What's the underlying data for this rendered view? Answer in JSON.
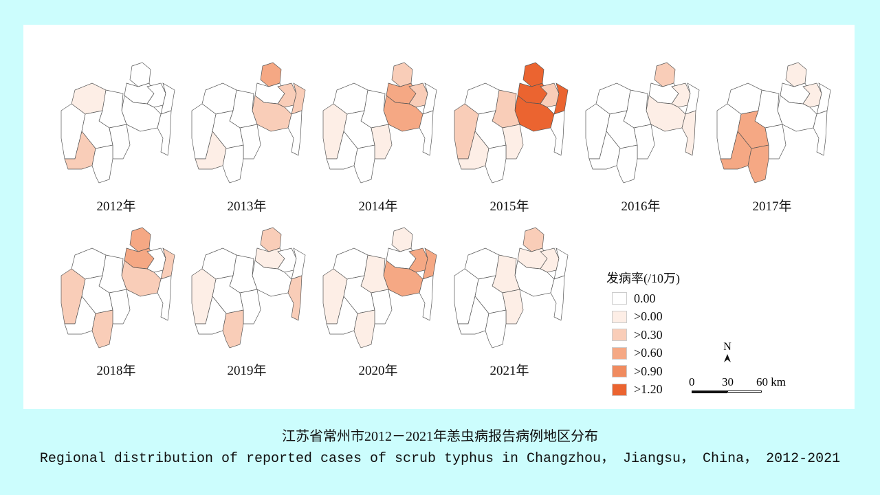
{
  "colors": [
    "#ffffff",
    "#fdeee6",
    "#f9cdb8",
    "#f5a884",
    "#f08b5f",
    "#eb6430"
  ],
  "legend": {
    "title": "发病率(/10万)",
    "items": [
      "0.00",
      ">0.00",
      ">0.30",
      ">0.60",
      ">0.90",
      ">1.20"
    ]
  },
  "north": "N",
  "scale": {
    "labels": [
      "0",
      "30",
      "60 km"
    ]
  },
  "years": [
    {
      "label": "2012年",
      "regions": {
        "G": 1,
        "L": 2
      }
    },
    {
      "label": "2013年",
      "regions": {
        "A": 3,
        "C": 2,
        "D": 2,
        "E": 2,
        "L": 1
      }
    },
    {
      "label": "2014年",
      "regions": {
        "A": 2,
        "B": 3,
        "C": 2,
        "E": 3,
        "I": 1,
        "K": 1
      }
    },
    {
      "label": "2015年",
      "regions": {
        "A": 5,
        "B": 5,
        "C": 2,
        "D": 5,
        "E": 5,
        "H": 2,
        "I": 2,
        "K": 1,
        "L": 1
      }
    },
    {
      "label": "2016年",
      "regions": {
        "A": 2,
        "C": 1,
        "E": 1,
        "F": 1
      }
    },
    {
      "label": "2017年",
      "regions": {
        "A": 1,
        "C": 1,
        "J": 3,
        "L": 3,
        "M": 3
      }
    },
    {
      "label": "2018年",
      "regions": {
        "A": 3,
        "B": 3,
        "D": 2,
        "E": 2,
        "I": 2,
        "M": 2
      }
    },
    {
      "label": "2019年",
      "regions": {
        "A": 2,
        "B": 1,
        "F": 2,
        "I": 1,
        "M": 2
      }
    },
    {
      "label": "2020年",
      "regions": {
        "A": 1,
        "C": 3,
        "D": 3,
        "E": 3,
        "H": 1,
        "I": 1,
        "M": 1
      }
    },
    {
      "label": "2021年",
      "regions": {
        "A": 2,
        "B": 1,
        "C": 1,
        "H": 1,
        "K": 1
      }
    }
  ],
  "caption": {
    "zh": "江苏省常州市2012－2021年恙虫病报告病例地区分布",
    "en": "Regional distribution of reported cases of scrub typhus in Changzhou， Jiangsu， China， 2012-2021"
  }
}
